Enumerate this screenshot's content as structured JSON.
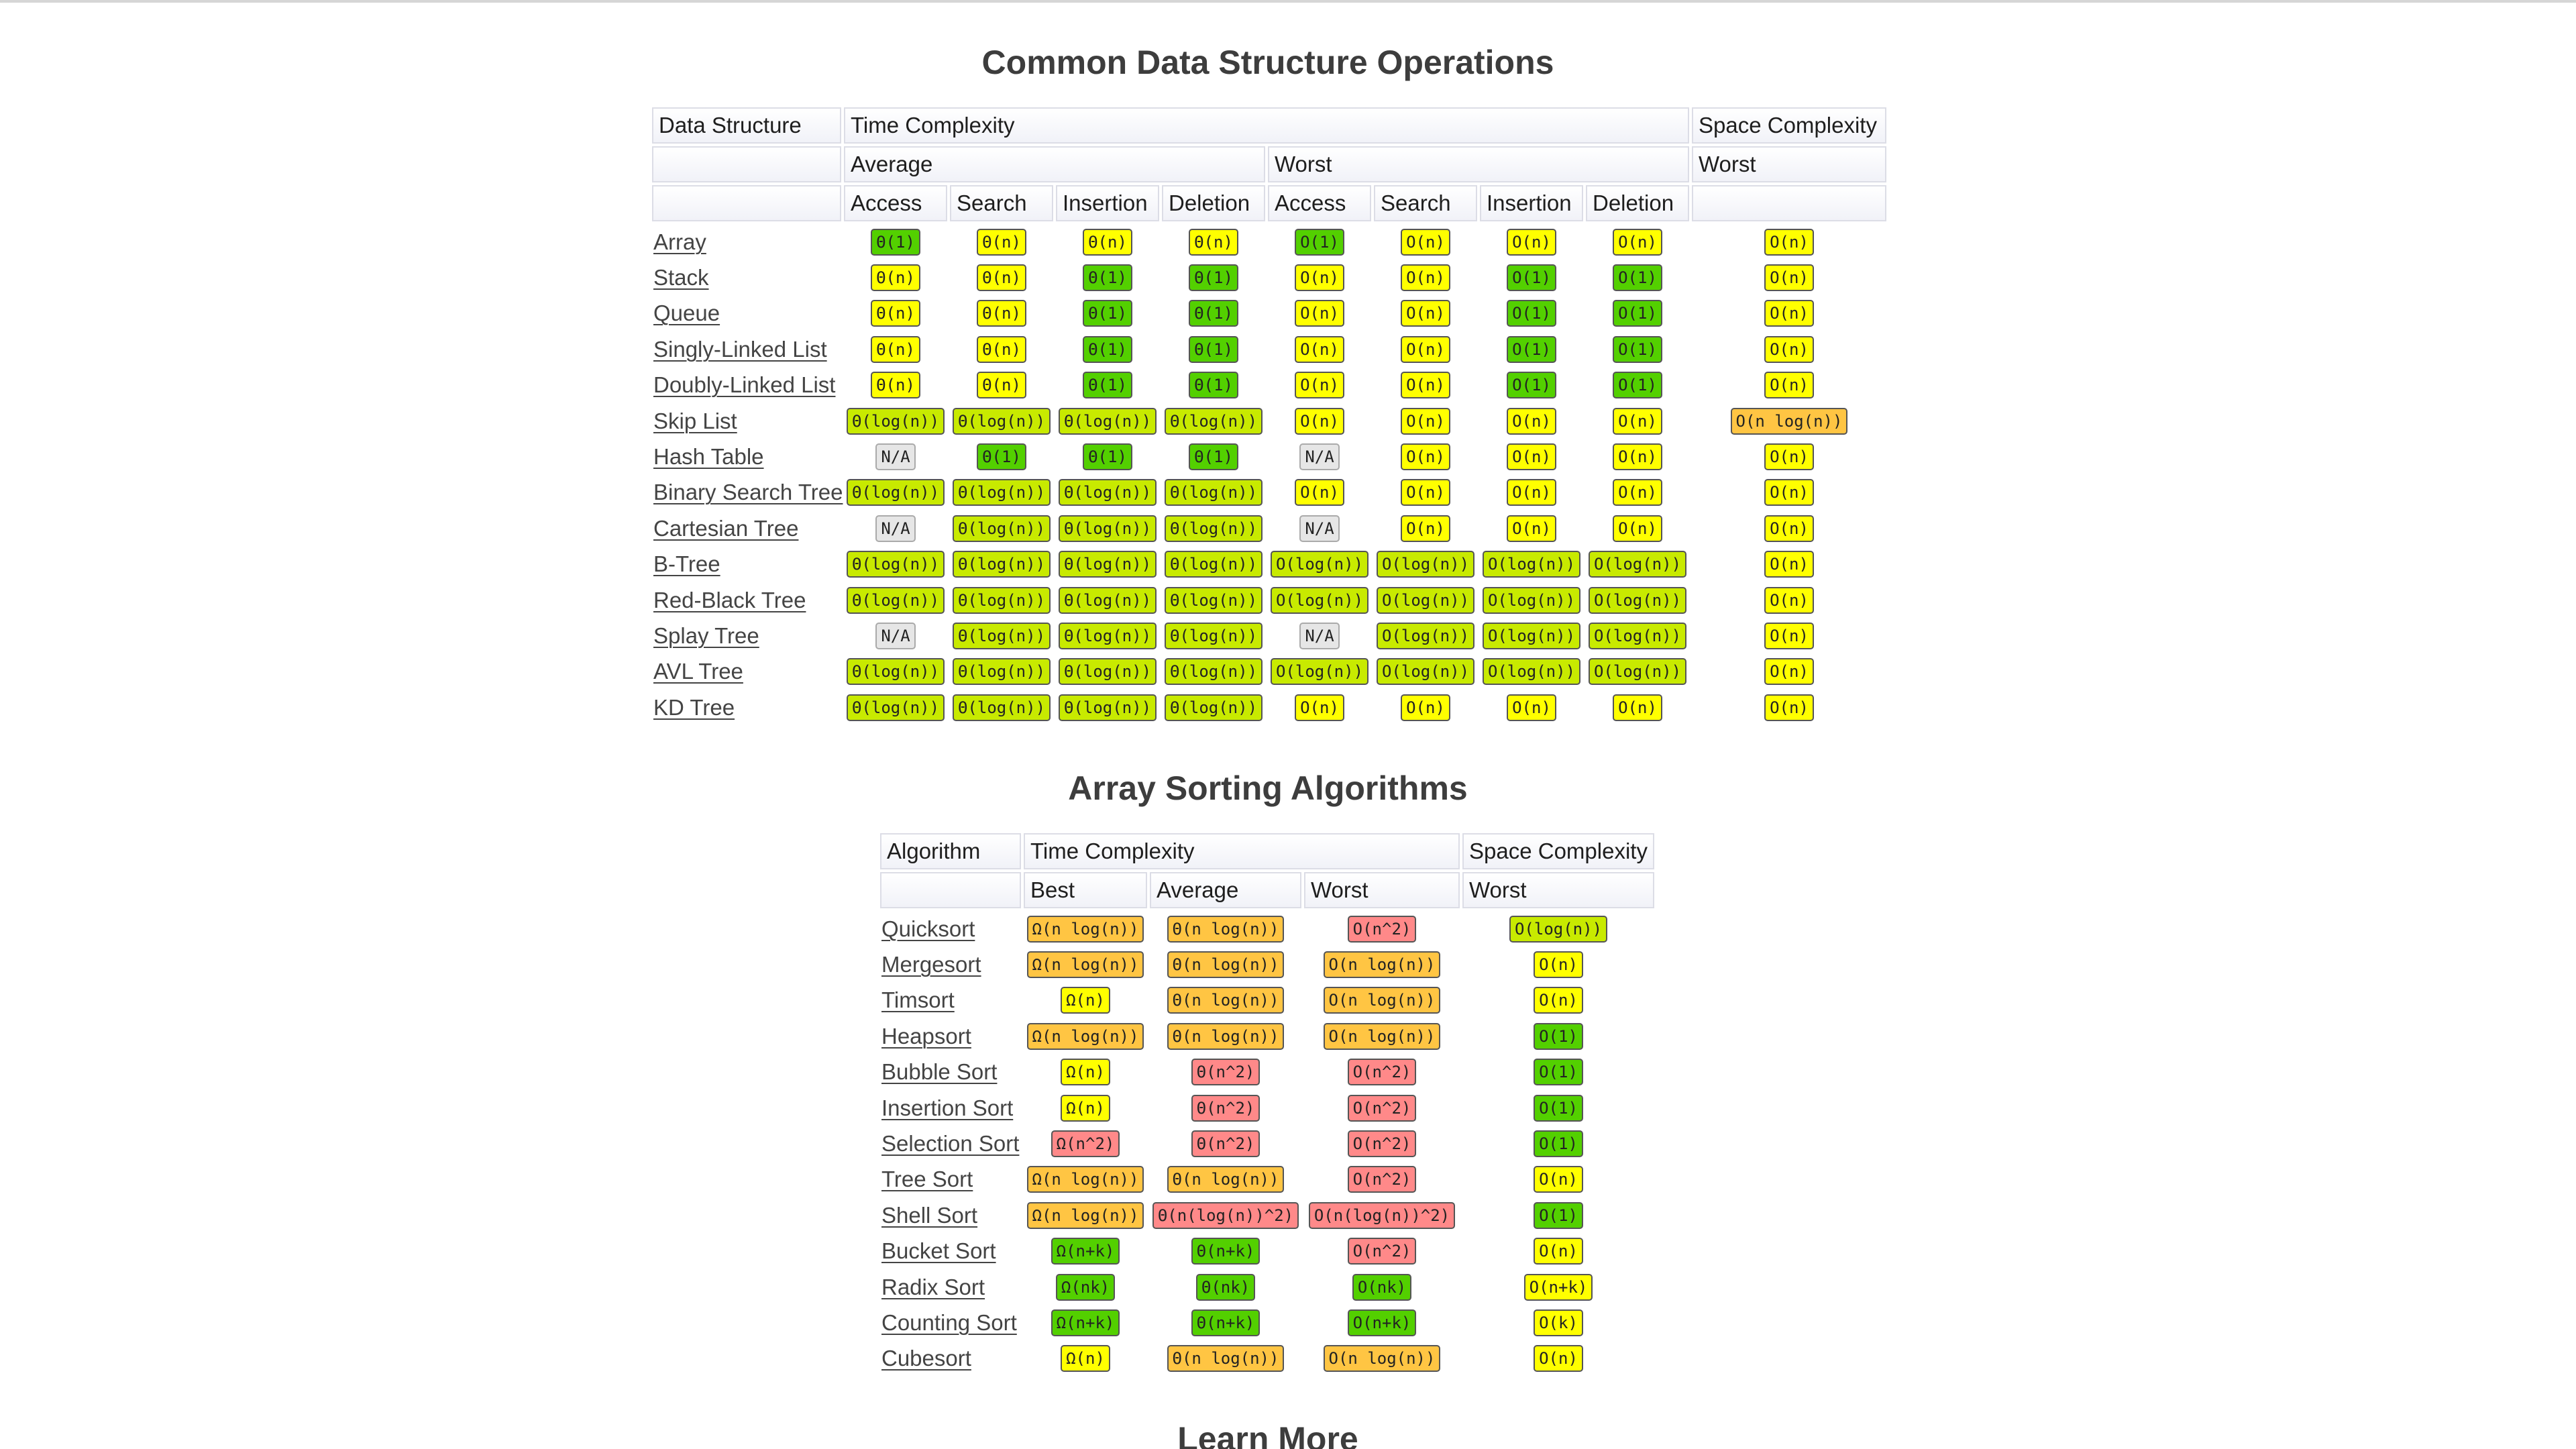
{
  "colors": {
    "green": "#53d000",
    "light_green": "#c8ea00",
    "yellow": "#ffff00",
    "orange": "#ffc543",
    "red": "#ff8989",
    "gray": "#e6e6e6"
  },
  "ds": {
    "title": "Common Data Structure Operations",
    "header1": [
      "Data Structure",
      "Time Complexity",
      "Space Complexity"
    ],
    "header2": [
      "",
      "Average",
      "Worst",
      "Worst"
    ],
    "header3": [
      "",
      "Access",
      "Search",
      "Insertion",
      "Deletion",
      "Access",
      "Search",
      "Insertion",
      "Deletion",
      ""
    ],
    "rows": [
      {
        "name": "Array",
        "cells": [
          [
            "Θ(1)",
            "green"
          ],
          [
            "Θ(n)",
            "yellow"
          ],
          [
            "Θ(n)",
            "yellow"
          ],
          [
            "Θ(n)",
            "yellow"
          ],
          [
            "O(1)",
            "green"
          ],
          [
            "O(n)",
            "yellow"
          ],
          [
            "O(n)",
            "yellow"
          ],
          [
            "O(n)",
            "yellow"
          ],
          [
            "O(n)",
            "yellow"
          ]
        ]
      },
      {
        "name": "Stack",
        "cells": [
          [
            "Θ(n)",
            "yellow"
          ],
          [
            "Θ(n)",
            "yellow"
          ],
          [
            "Θ(1)",
            "green"
          ],
          [
            "Θ(1)",
            "green"
          ],
          [
            "O(n)",
            "yellow"
          ],
          [
            "O(n)",
            "yellow"
          ],
          [
            "O(1)",
            "green"
          ],
          [
            "O(1)",
            "green"
          ],
          [
            "O(n)",
            "yellow"
          ]
        ]
      },
      {
        "name": "Queue",
        "cells": [
          [
            "Θ(n)",
            "yellow"
          ],
          [
            "Θ(n)",
            "yellow"
          ],
          [
            "Θ(1)",
            "green"
          ],
          [
            "Θ(1)",
            "green"
          ],
          [
            "O(n)",
            "yellow"
          ],
          [
            "O(n)",
            "yellow"
          ],
          [
            "O(1)",
            "green"
          ],
          [
            "O(1)",
            "green"
          ],
          [
            "O(n)",
            "yellow"
          ]
        ]
      },
      {
        "name": "Singly-Linked List",
        "cells": [
          [
            "Θ(n)",
            "yellow"
          ],
          [
            "Θ(n)",
            "yellow"
          ],
          [
            "Θ(1)",
            "green"
          ],
          [
            "Θ(1)",
            "green"
          ],
          [
            "O(n)",
            "yellow"
          ],
          [
            "O(n)",
            "yellow"
          ],
          [
            "O(1)",
            "green"
          ],
          [
            "O(1)",
            "green"
          ],
          [
            "O(n)",
            "yellow"
          ]
        ]
      },
      {
        "name": "Doubly-Linked List",
        "cells": [
          [
            "Θ(n)",
            "yellow"
          ],
          [
            "Θ(n)",
            "yellow"
          ],
          [
            "Θ(1)",
            "green"
          ],
          [
            "Θ(1)",
            "green"
          ],
          [
            "O(n)",
            "yellow"
          ],
          [
            "O(n)",
            "yellow"
          ],
          [
            "O(1)",
            "green"
          ],
          [
            "O(1)",
            "green"
          ],
          [
            "O(n)",
            "yellow"
          ]
        ]
      },
      {
        "name": "Skip List",
        "cells": [
          [
            "Θ(log(n))",
            "lgreen"
          ],
          [
            "Θ(log(n))",
            "lgreen"
          ],
          [
            "Θ(log(n))",
            "lgreen"
          ],
          [
            "Θ(log(n))",
            "lgreen"
          ],
          [
            "O(n)",
            "yellow"
          ],
          [
            "O(n)",
            "yellow"
          ],
          [
            "O(n)",
            "yellow"
          ],
          [
            "O(n)",
            "yellow"
          ],
          [
            "O(n log(n))",
            "orange"
          ]
        ]
      },
      {
        "name": "Hash Table",
        "cells": [
          [
            "N/A",
            "gray"
          ],
          [
            "Θ(1)",
            "green"
          ],
          [
            "Θ(1)",
            "green"
          ],
          [
            "Θ(1)",
            "green"
          ],
          [
            "N/A",
            "gray"
          ],
          [
            "O(n)",
            "yellow"
          ],
          [
            "O(n)",
            "yellow"
          ],
          [
            "O(n)",
            "yellow"
          ],
          [
            "O(n)",
            "yellow"
          ]
        ]
      },
      {
        "name": "Binary Search Tree",
        "cells": [
          [
            "Θ(log(n))",
            "lgreen"
          ],
          [
            "Θ(log(n))",
            "lgreen"
          ],
          [
            "Θ(log(n))",
            "lgreen"
          ],
          [
            "Θ(log(n))",
            "lgreen"
          ],
          [
            "O(n)",
            "yellow"
          ],
          [
            "O(n)",
            "yellow"
          ],
          [
            "O(n)",
            "yellow"
          ],
          [
            "O(n)",
            "yellow"
          ],
          [
            "O(n)",
            "yellow"
          ]
        ]
      },
      {
        "name": "Cartesian Tree",
        "cells": [
          [
            "N/A",
            "gray"
          ],
          [
            "Θ(log(n))",
            "lgreen"
          ],
          [
            "Θ(log(n))",
            "lgreen"
          ],
          [
            "Θ(log(n))",
            "lgreen"
          ],
          [
            "N/A",
            "gray"
          ],
          [
            "O(n)",
            "yellow"
          ],
          [
            "O(n)",
            "yellow"
          ],
          [
            "O(n)",
            "yellow"
          ],
          [
            "O(n)",
            "yellow"
          ]
        ]
      },
      {
        "name": "B-Tree",
        "cells": [
          [
            "Θ(log(n))",
            "lgreen"
          ],
          [
            "Θ(log(n))",
            "lgreen"
          ],
          [
            "Θ(log(n))",
            "lgreen"
          ],
          [
            "Θ(log(n))",
            "lgreen"
          ],
          [
            "O(log(n))",
            "lgreen"
          ],
          [
            "O(log(n))",
            "lgreen"
          ],
          [
            "O(log(n))",
            "lgreen"
          ],
          [
            "O(log(n))",
            "lgreen"
          ],
          [
            "O(n)",
            "yellow"
          ]
        ]
      },
      {
        "name": "Red-Black Tree",
        "cells": [
          [
            "Θ(log(n))",
            "lgreen"
          ],
          [
            "Θ(log(n))",
            "lgreen"
          ],
          [
            "Θ(log(n))",
            "lgreen"
          ],
          [
            "Θ(log(n))",
            "lgreen"
          ],
          [
            "O(log(n))",
            "lgreen"
          ],
          [
            "O(log(n))",
            "lgreen"
          ],
          [
            "O(log(n))",
            "lgreen"
          ],
          [
            "O(log(n))",
            "lgreen"
          ],
          [
            "O(n)",
            "yellow"
          ]
        ]
      },
      {
        "name": "Splay Tree",
        "cells": [
          [
            "N/A",
            "gray"
          ],
          [
            "Θ(log(n))",
            "lgreen"
          ],
          [
            "Θ(log(n))",
            "lgreen"
          ],
          [
            "Θ(log(n))",
            "lgreen"
          ],
          [
            "N/A",
            "gray"
          ],
          [
            "O(log(n))",
            "lgreen"
          ],
          [
            "O(log(n))",
            "lgreen"
          ],
          [
            "O(log(n))",
            "lgreen"
          ],
          [
            "O(n)",
            "yellow"
          ]
        ]
      },
      {
        "name": "AVL Tree",
        "cells": [
          [
            "Θ(log(n))",
            "lgreen"
          ],
          [
            "Θ(log(n))",
            "lgreen"
          ],
          [
            "Θ(log(n))",
            "lgreen"
          ],
          [
            "Θ(log(n))",
            "lgreen"
          ],
          [
            "O(log(n))",
            "lgreen"
          ],
          [
            "O(log(n))",
            "lgreen"
          ],
          [
            "O(log(n))",
            "lgreen"
          ],
          [
            "O(log(n))",
            "lgreen"
          ],
          [
            "O(n)",
            "yellow"
          ]
        ]
      },
      {
        "name": "KD Tree",
        "cells": [
          [
            "Θ(log(n))",
            "lgreen"
          ],
          [
            "Θ(log(n))",
            "lgreen"
          ],
          [
            "Θ(log(n))",
            "lgreen"
          ],
          [
            "Θ(log(n))",
            "lgreen"
          ],
          [
            "O(n)",
            "yellow"
          ],
          [
            "O(n)",
            "yellow"
          ],
          [
            "O(n)",
            "yellow"
          ],
          [
            "O(n)",
            "yellow"
          ],
          [
            "O(n)",
            "yellow"
          ]
        ]
      }
    ]
  },
  "sort": {
    "title": "Array Sorting Algorithms",
    "header1": [
      "Algorithm",
      "Time Complexity",
      "Space Complexity"
    ],
    "header2": [
      "",
      "Best",
      "Average",
      "Worst",
      "Worst"
    ],
    "rows": [
      {
        "name": "Quicksort",
        "cells": [
          [
            "Ω(n log(n))",
            "orange"
          ],
          [
            "Θ(n log(n))",
            "orange"
          ],
          [
            "O(n^2)",
            "red"
          ],
          [
            "O(log(n))",
            "lgreen"
          ]
        ]
      },
      {
        "name": "Mergesort",
        "cells": [
          [
            "Ω(n log(n))",
            "orange"
          ],
          [
            "Θ(n log(n))",
            "orange"
          ],
          [
            "O(n log(n))",
            "orange"
          ],
          [
            "O(n)",
            "yellow"
          ]
        ]
      },
      {
        "name": "Timsort",
        "cells": [
          [
            "Ω(n)",
            "yellow"
          ],
          [
            "Θ(n log(n))",
            "orange"
          ],
          [
            "O(n log(n))",
            "orange"
          ],
          [
            "O(n)",
            "yellow"
          ]
        ]
      },
      {
        "name": "Heapsort",
        "cells": [
          [
            "Ω(n log(n))",
            "orange"
          ],
          [
            "Θ(n log(n))",
            "orange"
          ],
          [
            "O(n log(n))",
            "orange"
          ],
          [
            "O(1)",
            "green"
          ]
        ]
      },
      {
        "name": "Bubble Sort",
        "cells": [
          [
            "Ω(n)",
            "yellow"
          ],
          [
            "Θ(n^2)",
            "red"
          ],
          [
            "O(n^2)",
            "red"
          ],
          [
            "O(1)",
            "green"
          ]
        ]
      },
      {
        "name": "Insertion Sort",
        "cells": [
          [
            "Ω(n)",
            "yellow"
          ],
          [
            "Θ(n^2)",
            "red"
          ],
          [
            "O(n^2)",
            "red"
          ],
          [
            "O(1)",
            "green"
          ]
        ]
      },
      {
        "name": "Selection Sort",
        "cells": [
          [
            "Ω(n^2)",
            "red"
          ],
          [
            "Θ(n^2)",
            "red"
          ],
          [
            "O(n^2)",
            "red"
          ],
          [
            "O(1)",
            "green"
          ]
        ]
      },
      {
        "name": "Tree Sort",
        "cells": [
          [
            "Ω(n log(n))",
            "orange"
          ],
          [
            "Θ(n log(n))",
            "orange"
          ],
          [
            "O(n^2)",
            "red"
          ],
          [
            "O(n)",
            "yellow"
          ]
        ]
      },
      {
        "name": "Shell Sort",
        "cells": [
          [
            "Ω(n log(n))",
            "orange"
          ],
          [
            "Θ(n(log(n))^2)",
            "red"
          ],
          [
            "O(n(log(n))^2)",
            "red"
          ],
          [
            "O(1)",
            "green"
          ]
        ]
      },
      {
        "name": "Bucket Sort",
        "cells": [
          [
            "Ω(n+k)",
            "green"
          ],
          [
            "Θ(n+k)",
            "green"
          ],
          [
            "O(n^2)",
            "red"
          ],
          [
            "O(n)",
            "yellow"
          ]
        ]
      },
      {
        "name": "Radix Sort",
        "cells": [
          [
            "Ω(nk)",
            "green"
          ],
          [
            "Θ(nk)",
            "green"
          ],
          [
            "O(nk)",
            "green"
          ],
          [
            "O(n+k)",
            "yellow"
          ]
        ]
      },
      {
        "name": "Counting Sort",
        "cells": [
          [
            "Ω(n+k)",
            "green"
          ],
          [
            "Θ(n+k)",
            "green"
          ],
          [
            "O(n+k)",
            "green"
          ],
          [
            "O(k)",
            "yellow"
          ]
        ]
      },
      {
        "name": "Cubesort",
        "cells": [
          [
            "Ω(n)",
            "yellow"
          ],
          [
            "Θ(n log(n))",
            "orange"
          ],
          [
            "O(n log(n))",
            "orange"
          ],
          [
            "O(n)",
            "yellow"
          ]
        ]
      }
    ]
  },
  "learn_more": {
    "title": "Learn More"
  }
}
